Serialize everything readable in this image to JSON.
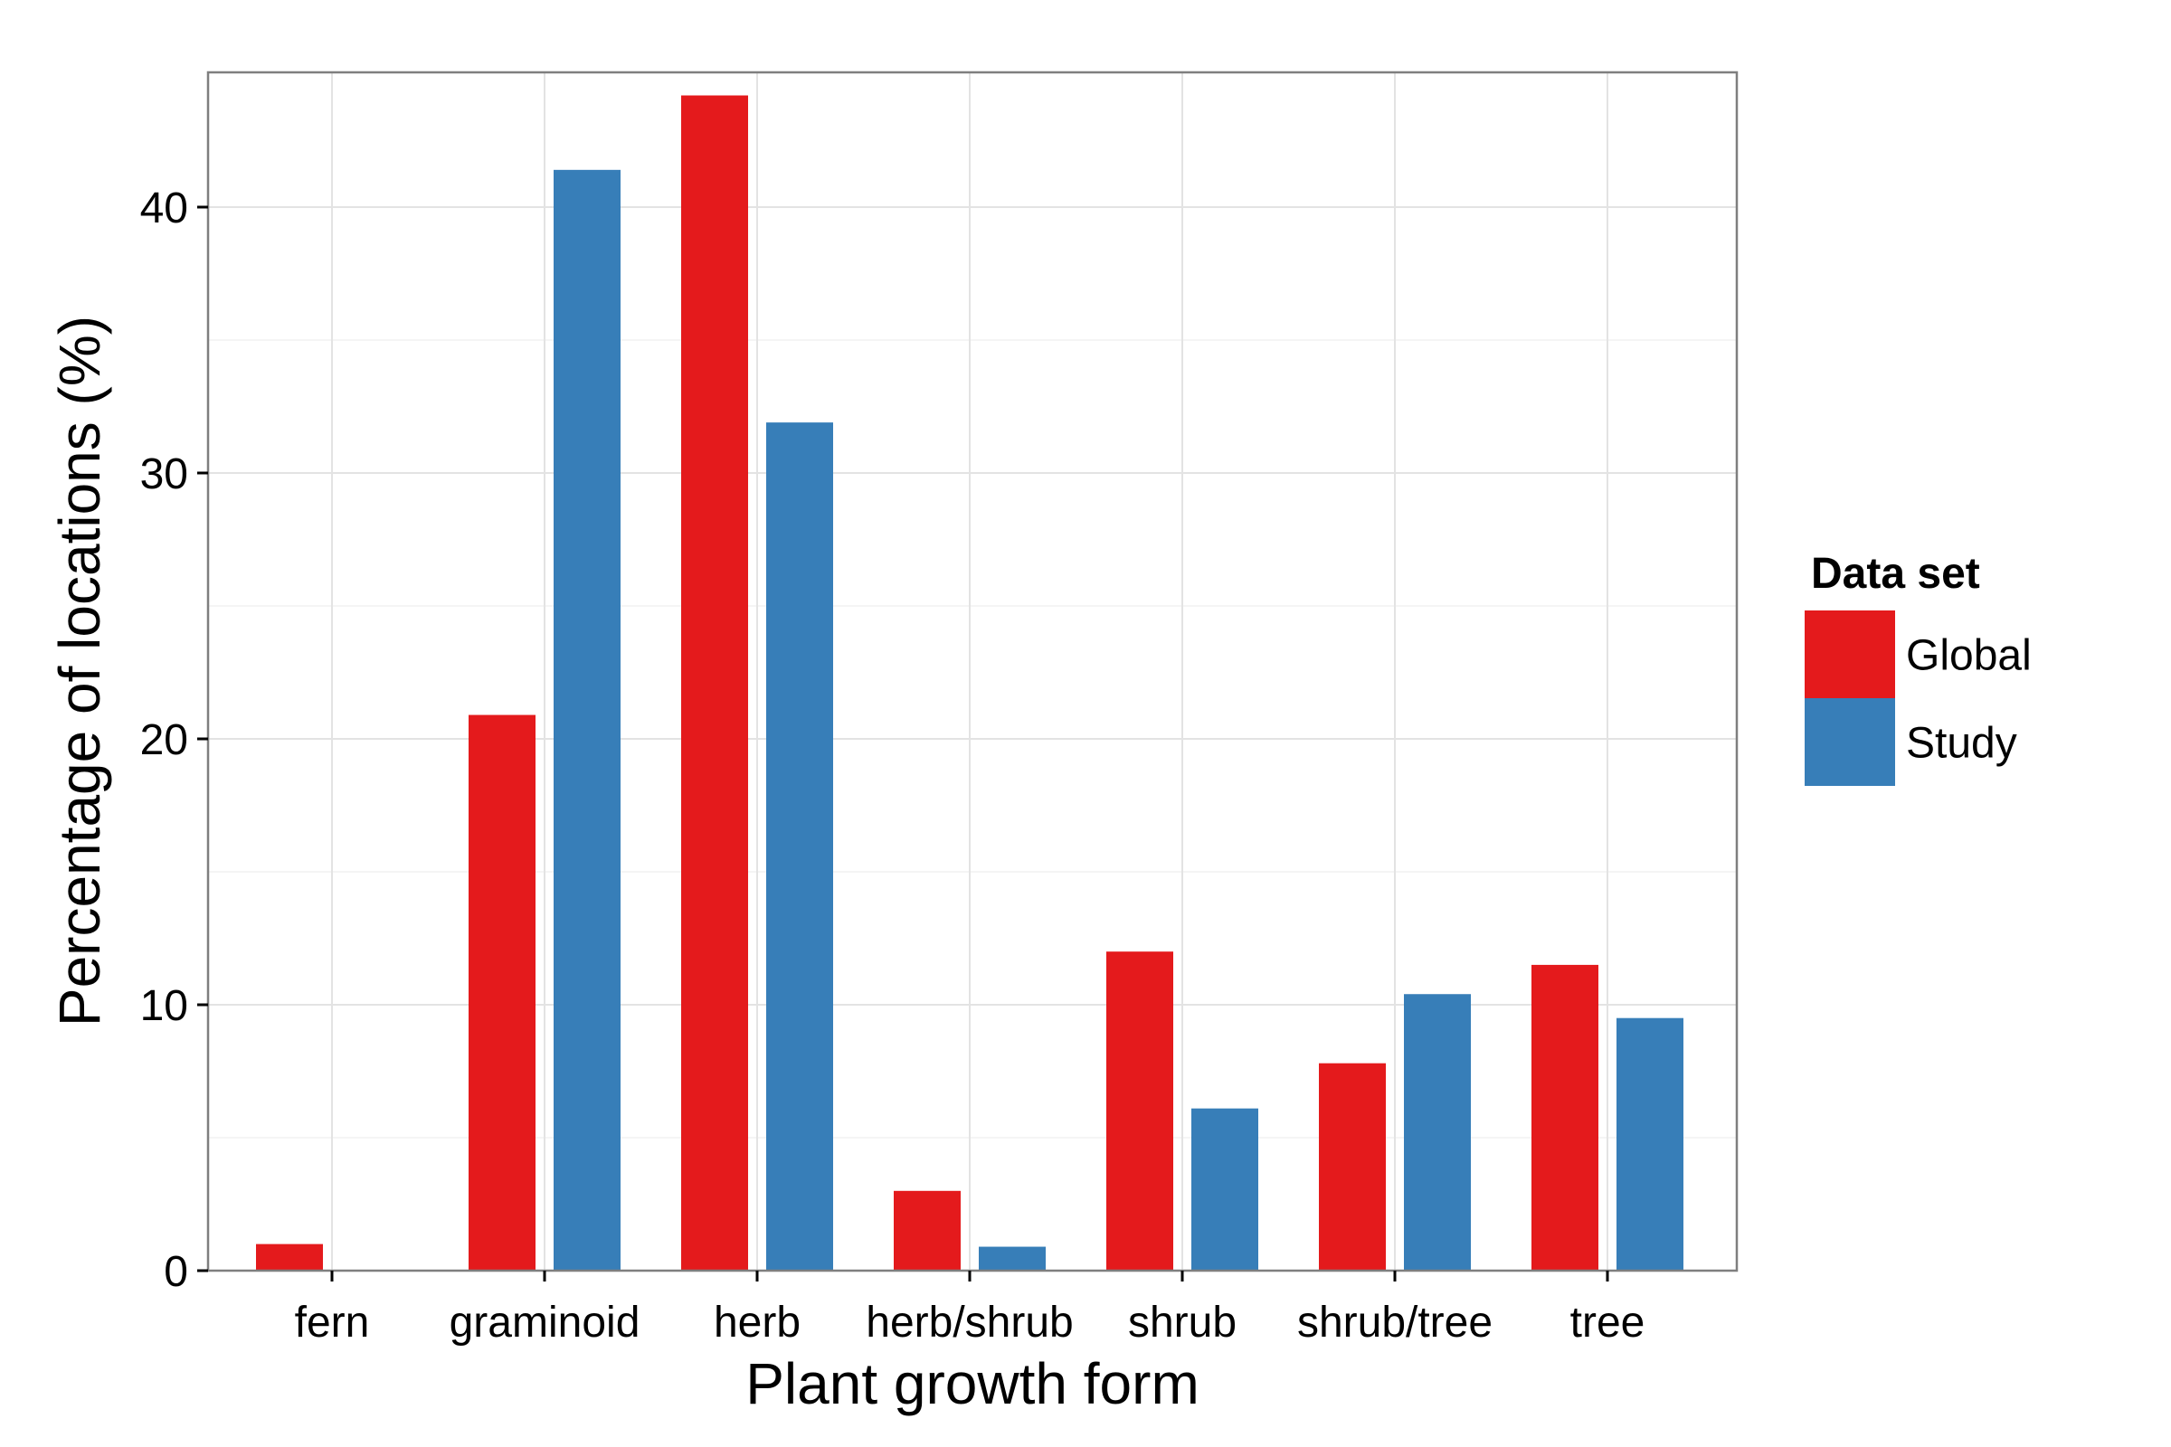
{
  "chart_data": {
    "type": "bar",
    "title": "",
    "xlabel": "Plant growth form",
    "ylabel": "Percentage of locations (%)",
    "categories": [
      "fern",
      "graminoid",
      "herb",
      "herb/shrub",
      "shrub",
      "shrub/tree",
      "tree"
    ],
    "series": [
      {
        "name": "Global",
        "color": "#E41A1C",
        "values": [
          1.0,
          20.9,
          44.2,
          3.0,
          12.0,
          7.8,
          11.5
        ]
      },
      {
        "name": "Study",
        "color": "#377EB8",
        "values": [
          0.0,
          41.4,
          31.9,
          0.9,
          6.1,
          10.4,
          9.5
        ]
      }
    ],
    "ylim": [
      0,
      45
    ],
    "yticks": [
      0,
      10,
      20,
      30,
      40
    ],
    "grid": true,
    "legend": {
      "title": "Data set",
      "position": "right"
    }
  }
}
